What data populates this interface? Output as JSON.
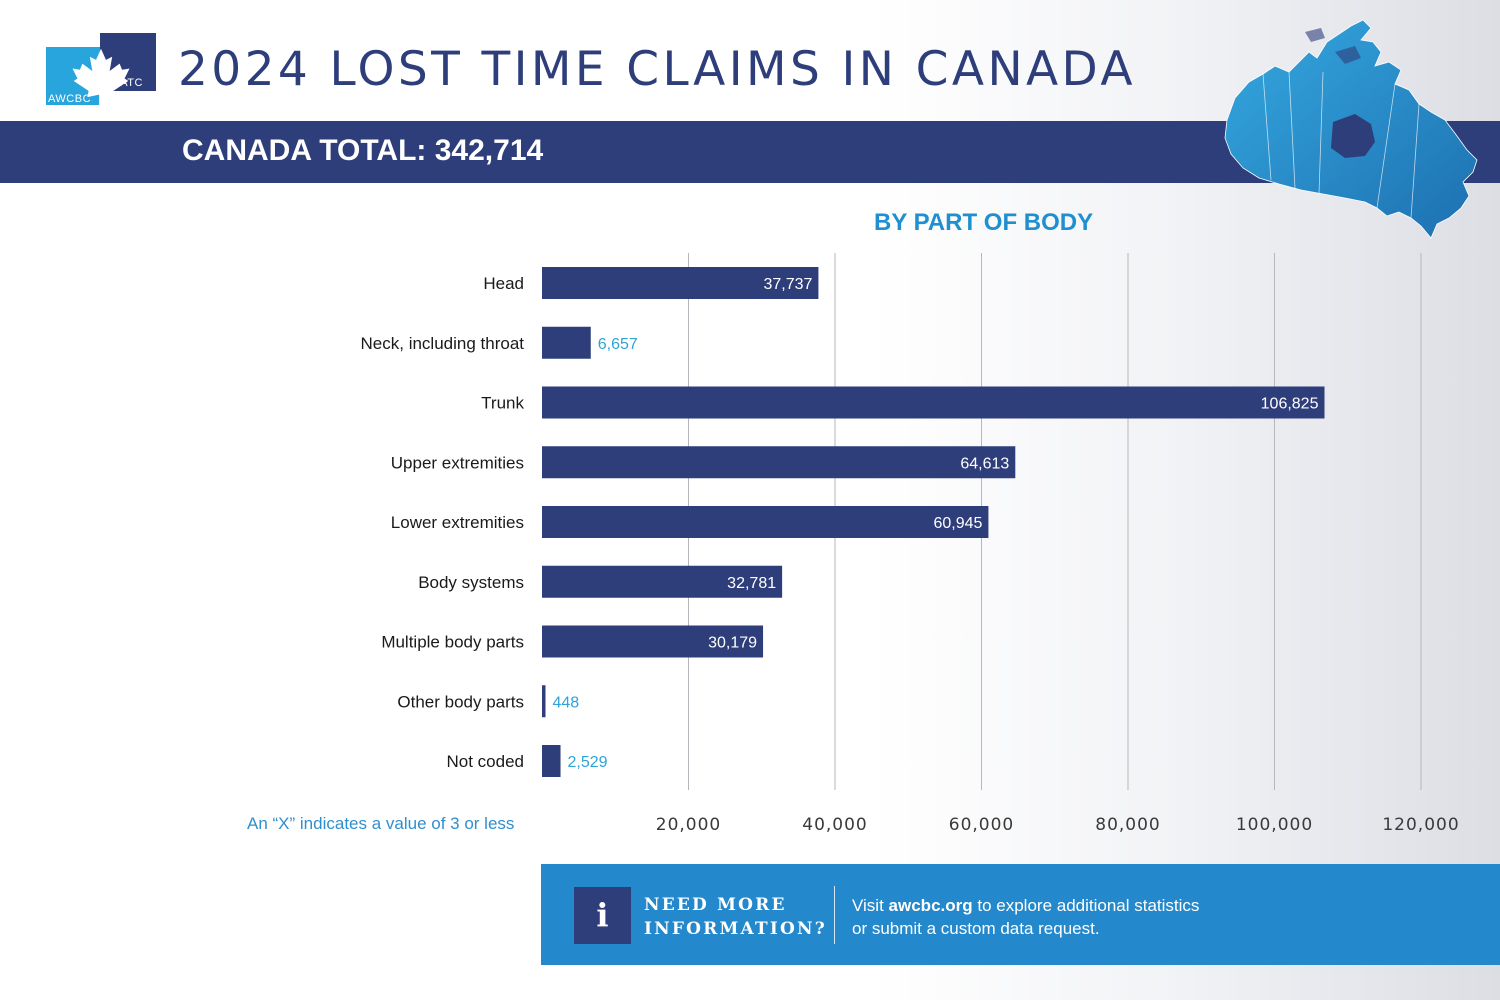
{
  "header": {
    "title": "2024 LOST TIME CLAIMS IN CANADA",
    "logo_left": "AWCBC",
    "logo_right": "ACATC"
  },
  "banner": {
    "text": "CANADA TOTAL: 342,714"
  },
  "chart_data": {
    "type": "bar",
    "orientation": "horizontal",
    "title": "BY PART OF BODY",
    "categories": [
      "Head",
      "Neck, including throat",
      "Trunk",
      "Upper extremities",
      "Lower extremities",
      "Body systems",
      "Multiple body parts",
      "Other body parts",
      "Not coded"
    ],
    "values": [
      37737,
      6657,
      106825,
      64613,
      60945,
      32781,
      30179,
      448,
      2529
    ],
    "value_labels": [
      "37,737",
      "6,657",
      "106,825",
      "64,613",
      "60,945",
      "32,781",
      "30,179",
      "448",
      "2,529"
    ],
    "xlim": [
      0,
      120000
    ],
    "xticks": [
      20000,
      40000,
      60000,
      80000,
      100000,
      120000
    ],
    "xtick_labels": [
      "20,000",
      "40,000",
      "60,000",
      "80,000",
      "100,000",
      "120,000"
    ],
    "grid": true,
    "colors": {
      "bar": "#2e3e7a",
      "label_inside": "#ffffff",
      "label_outside": "#2fa3d8",
      "grid": "#b5b7bd"
    }
  },
  "note": "An “X” indicates a value of 3 or less",
  "info": {
    "icon": "info-icon",
    "heading_line1": "NEED MORE",
    "heading_line2": "INFORMATION?",
    "text_prefix": "Visit ",
    "link": "awcbc.org",
    "text_suffix_line1": " to explore additional statistics",
    "text_line2": "or submit a custom data request."
  },
  "colors": {
    "navy": "#2e3e7a",
    "accent_blue": "#29a5dd",
    "info_blue": "#2388cc"
  }
}
